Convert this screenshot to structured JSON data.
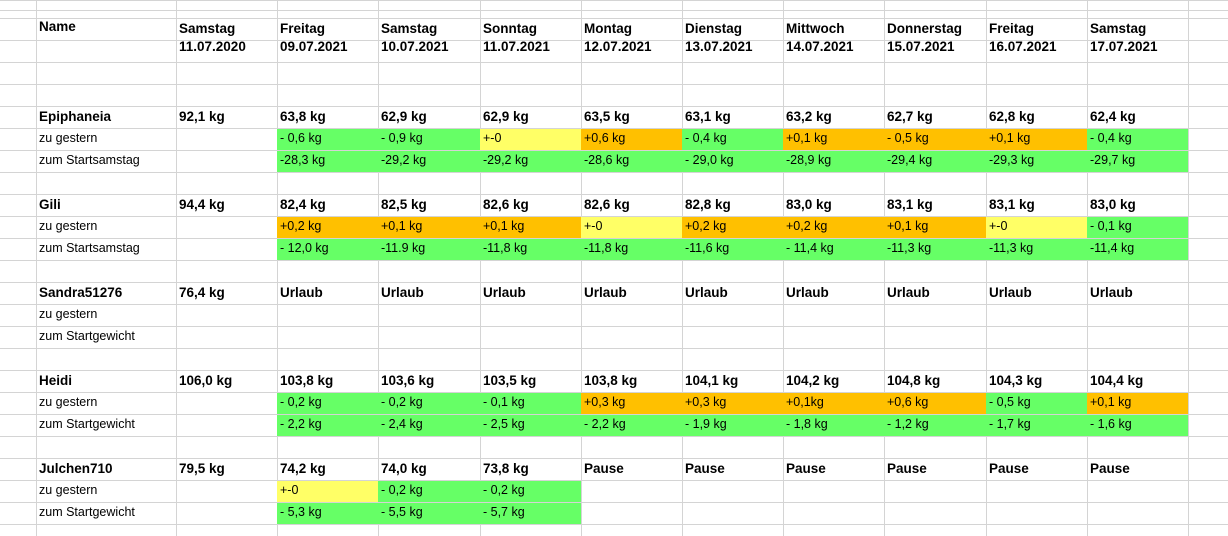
{
  "sheet": {
    "header": {
      "name_label": "Name",
      "days": [
        {
          "weekday": "Samstag",
          "date": "11.07.2020"
        },
        {
          "weekday": "Freitag",
          "date": "09.07.2021"
        },
        {
          "weekday": "Samstag",
          "date": "10.07.2021"
        },
        {
          "weekday": "Sonntag",
          "date": "11.07.2021"
        },
        {
          "weekday": "Montag",
          "date": "12.07.2021"
        },
        {
          "weekday": "Dienstag",
          "date": "13.07.2021"
        },
        {
          "weekday": "Mittwoch",
          "date": "14.07.2021"
        },
        {
          "weekday": "Donnerstag",
          "date": "15.07.2021"
        },
        {
          "weekday": "Freitag",
          "date": "16.07.2021"
        },
        {
          "weekday": "Samstag",
          "date": "17.07.2021"
        }
      ]
    },
    "colors": {
      "green": "#66ff66",
      "yellow": "#ffff66",
      "orange": "#ffc000",
      "grid": "#d4d4d4"
    },
    "people": [
      {
        "name": "Epiphaneia",
        "start": "92,1 kg",
        "weights": [
          "63,8 kg",
          "62,9 kg",
          "62,9 kg",
          "63,5 kg",
          "63,1 kg",
          "63,2 kg",
          "62,7 kg",
          "62,8 kg",
          "62,4 kg"
        ],
        "row2_label": "zu gestern",
        "row2": [
          {
            "t": "- 0,6 kg",
            "c": "green"
          },
          {
            "t": "- 0,9 kg",
            "c": "green"
          },
          {
            "t": "+-0",
            "c": "yellow"
          },
          {
            "t": "+0,6 kg",
            "c": "orange"
          },
          {
            "t": "- 0,4 kg",
            "c": "green"
          },
          {
            "t": "+0,1 kg",
            "c": "orange"
          },
          {
            "t": "- 0,5 kg",
            "c": "orange"
          },
          {
            "t": "+0,1 kg",
            "c": "orange"
          },
          {
            "t": "- 0,4 kg",
            "c": "green"
          }
        ],
        "row3_label": "zum Startsamstag",
        "row3": [
          {
            "t": "-28,3 kg",
            "c": "green"
          },
          {
            "t": "-29,2 kg",
            "c": "green"
          },
          {
            "t": "-29,2 kg",
            "c": "green"
          },
          {
            "t": "-28,6 kg",
            "c": "green"
          },
          {
            "t": "- 29,0 kg",
            "c": "green"
          },
          {
            "t": "-28,9 kg",
            "c": "green"
          },
          {
            "t": "-29,4 kg",
            "c": "green"
          },
          {
            "t": "-29,3 kg",
            "c": "green"
          },
          {
            "t": "-29,7 kg",
            "c": "green"
          }
        ]
      },
      {
        "name": "Gili",
        "start": "94,4 kg",
        "weights": [
          "82,4 kg",
          "82,5 kg",
          "82,6 kg",
          "82,6 kg",
          "82,8 kg",
          "83,0 kg",
          "83,1 kg",
          "83,1 kg",
          "83,0 kg"
        ],
        "row2_label": "zu gestern",
        "row2": [
          {
            "t": "+0,2 kg",
            "c": "orange"
          },
          {
            "t": "+0,1 kg",
            "c": "orange"
          },
          {
            "t": "+0,1 kg",
            "c": "orange"
          },
          {
            "t": "+-0",
            "c": "yellow"
          },
          {
            "t": "+0,2 kg",
            "c": "orange"
          },
          {
            "t": "+0,2 kg",
            "c": "orange"
          },
          {
            "t": "+0,1 kg",
            "c": "orange"
          },
          {
            "t": "+-0",
            "c": "yellow"
          },
          {
            "t": "- 0,1 kg",
            "c": "green"
          }
        ],
        "row3_label": "zum Startsamstag",
        "row3": [
          {
            "t": "- 12,0 kg",
            "c": "green"
          },
          {
            "t": "-11.9 kg",
            "c": "green"
          },
          {
            "t": "-11,8 kg",
            "c": "green"
          },
          {
            "t": "-11,8 kg",
            "c": "green"
          },
          {
            "t": "-11,6 kg",
            "c": "green"
          },
          {
            "t": "- 11,4 kg",
            "c": "green"
          },
          {
            "t": "-11,3 kg",
            "c": "green"
          },
          {
            "t": "-11,3 kg",
            "c": "green"
          },
          {
            "t": "-11,4 kg",
            "c": "green"
          }
        ]
      },
      {
        "name": "Sandra51276",
        "start": "76,4 kg",
        "weights": [
          "Urlaub",
          "Urlaub",
          "Urlaub",
          "Urlaub",
          "Urlaub",
          "Urlaub",
          "Urlaub",
          "Urlaub",
          "Urlaub"
        ],
        "row2_label": "zu gestern",
        "row2": [],
        "row3_label": "zum Startgewicht",
        "row3": []
      },
      {
        "name": "Heidi",
        "start": "106,0 kg",
        "weights": [
          "103,8 kg",
          "103,6 kg",
          "103,5 kg",
          "103,8 kg",
          "104,1 kg",
          "104,2 kg",
          "104,8 kg",
          "104,3 kg",
          "104,4 kg"
        ],
        "row2_label": "zu gestern",
        "row2": [
          {
            "t": "- 0,2 kg",
            "c": "green"
          },
          {
            "t": "- 0,2 kg",
            "c": "green"
          },
          {
            "t": "- 0,1 kg",
            "c": "green"
          },
          {
            "t": "+0,3 kg",
            "c": "orange"
          },
          {
            "t": "+0,3 kg",
            "c": "orange"
          },
          {
            "t": "+0,1kg",
            "c": "orange"
          },
          {
            "t": "+0,6 kg",
            "c": "orange"
          },
          {
            "t": "- 0,5 kg",
            "c": "green"
          },
          {
            "t": "+0,1 kg",
            "c": "orange"
          }
        ],
        "row3_label": "zum Startgewicht",
        "row3": [
          {
            "t": "- 2,2 kg",
            "c": "green"
          },
          {
            "t": "- 2,4 kg",
            "c": "green"
          },
          {
            "t": "- 2,5 kg",
            "c": "green"
          },
          {
            "t": "-  2,2 kg",
            "c": "green"
          },
          {
            "t": "- 1,9 kg",
            "c": "green"
          },
          {
            "t": "- 1,8 kg",
            "c": "green"
          },
          {
            "t": "- 1,2 kg",
            "c": "green"
          },
          {
            "t": "- 1,7 kg",
            "c": "green"
          },
          {
            "t": "- 1,6 kg",
            "c": "green"
          }
        ]
      },
      {
        "name": "Julchen710",
        "start": "79,5 kg",
        "weights": [
          "74,2 kg",
          "74,0 kg",
          "73,8 kg",
          "Pause",
          "Pause",
          "Pause",
          "Pause",
          "Pause",
          "Pause"
        ],
        "row2_label": "zu gestern",
        "row2": [
          {
            "t": "+-0",
            "c": "yellow"
          },
          {
            "t": "- 0,2 kg",
            "c": "green"
          },
          {
            "t": "- 0,2 kg",
            "c": "green"
          }
        ],
        "row3_label": "zum Startgewicht",
        "row3": [
          {
            "t": "- 5,3 kg",
            "c": "green"
          },
          {
            "t": "- 5,5 kg",
            "c": "green"
          },
          {
            "t": "- 5,7 kg",
            "c": "green"
          }
        ]
      }
    ]
  }
}
